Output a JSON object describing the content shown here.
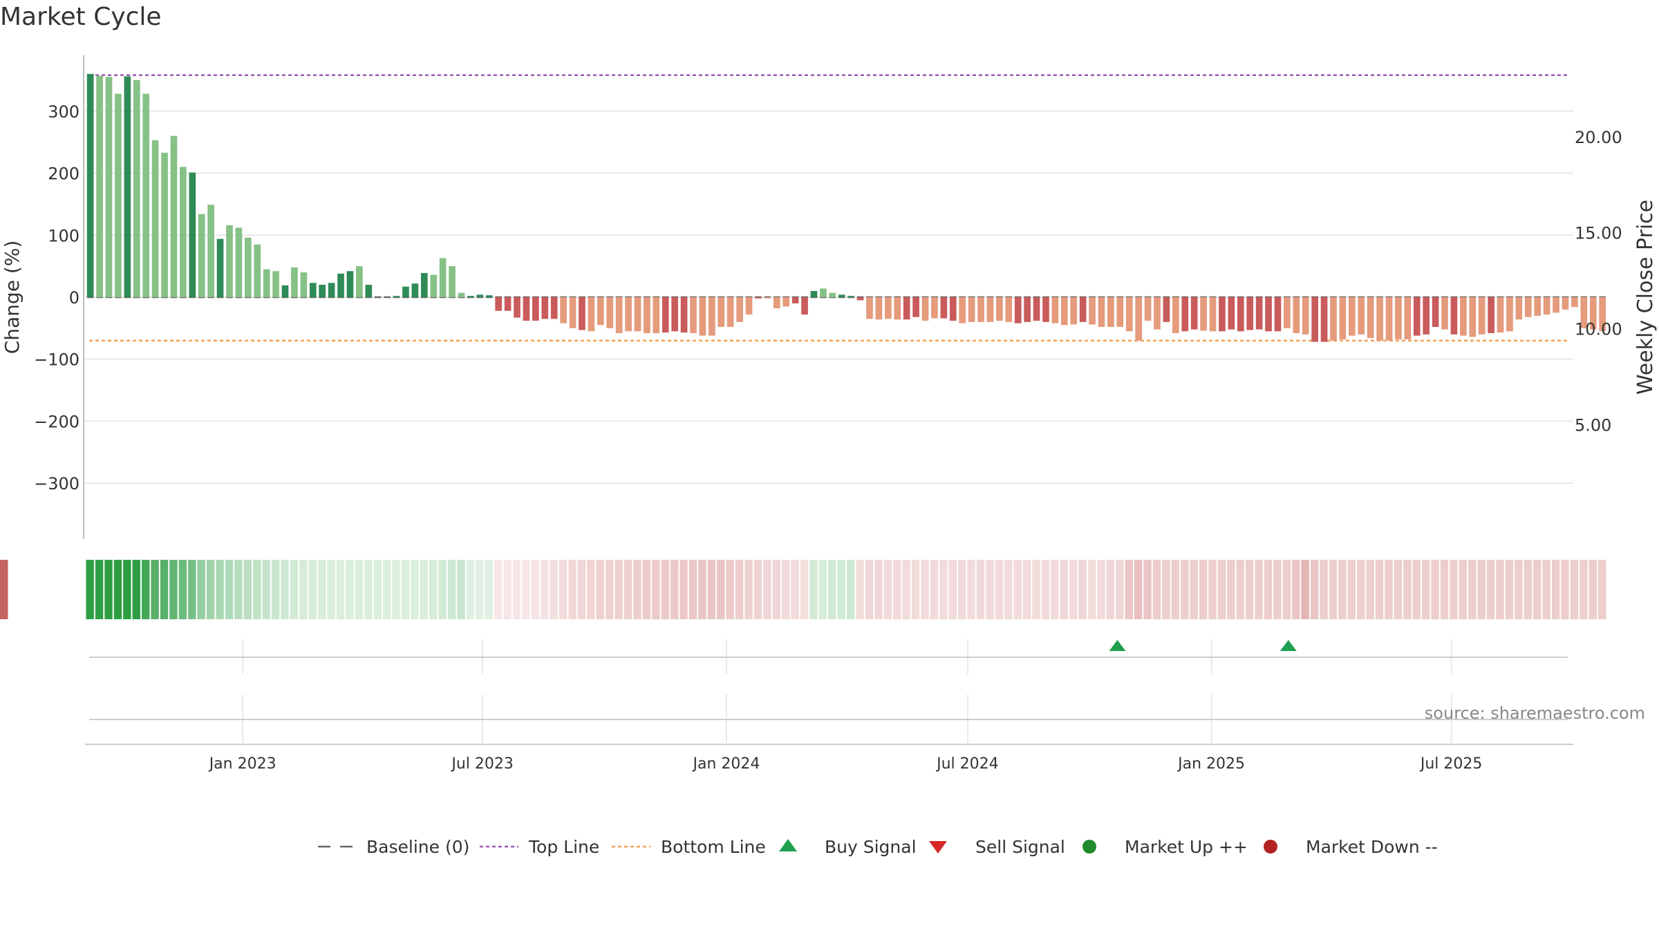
{
  "title": "Market Cycle",
  "source": "source: sharemaestro.com",
  "colors": {
    "green_dark": "#2e8b57",
    "green_light": "#86c186",
    "red_dark": "#c95b5b",
    "red_light": "#e59b7c",
    "top_line": "#9b59b6",
    "bottom_line": "#f0a050",
    "buy": "#1fa050",
    "sell": "#d62828",
    "market_up": "#1f8b2c",
    "market_down": "#b22222",
    "grid": "#e8e8e8",
    "axis": "#bbbbbb",
    "text": "#333333"
  },
  "legend": [
    {
      "key": "baseline",
      "label": "Baseline (0)"
    },
    {
      "key": "top",
      "label": "Top Line"
    },
    {
      "key": "bottom",
      "label": "Bottom Line"
    },
    {
      "key": "buy",
      "label": "Buy Signal"
    },
    {
      "key": "sell",
      "label": "Sell Signal"
    },
    {
      "key": "up",
      "label": "Market Up ++"
    },
    {
      "key": "down",
      "label": "Market Down --"
    }
  ],
  "chart_data": {
    "type": "bar",
    "ylabel": "Change (%)",
    "y2label": "Weekly Close Price",
    "ylim": [
      -390,
      390
    ],
    "yticks": [
      -300,
      -200,
      -100,
      0,
      100,
      200,
      300
    ],
    "ytick_labels": [
      "−300",
      "−200",
      "−100",
      "0",
      "100",
      "200",
      "300"
    ],
    "y2lim": [
      -0.96,
      24.24
    ],
    "y2ticks": [
      5,
      10,
      15,
      20
    ],
    "y2tick_labels": [
      "5.00",
      "10.00",
      "15.00",
      "20.00"
    ],
    "top_line": 358,
    "bottom_line": -70,
    "grid": true,
    "legend_position": "bottom",
    "x_start": "2022-09-04",
    "x_end": "2025-10-01",
    "xticks": [
      {
        "date": "2023-01-01",
        "label": "Jan 2023"
      },
      {
        "date": "2023-07-01",
        "label": "Jul 2023"
      },
      {
        "date": "2024-01-01",
        "label": "Jan 2024"
      },
      {
        "date": "2024-07-01",
        "label": "Jul 2024"
      },
      {
        "date": "2025-01-01",
        "label": "Jan 2025"
      },
      {
        "date": "2025-07-01",
        "label": "Jul 2025"
      }
    ],
    "first_bar_date": "2022-09-08",
    "bar_interval_days": 7,
    "bar_values": [
      360,
      357,
      355,
      328,
      356,
      350,
      328,
      253,
      233,
      260,
      210,
      201,
      134,
      149,
      94,
      116,
      112,
      96,
      85,
      45,
      42,
      19,
      48,
      40,
      23,
      20,
      23,
      38,
      42,
      50,
      20,
      0,
      0,
      2,
      17,
      22,
      39,
      36,
      63,
      50,
      7,
      2,
      4,
      3,
      -22,
      -22,
      -33,
      -38,
      -38,
      -35,
      -35,
      -42,
      -50,
      -53,
      -55,
      -45,
      -50,
      -58,
      -55,
      -55,
      -58,
      -58,
      -57,
      -55,
      -57,
      -58,
      -62,
      -62,
      -48,
      -48,
      -40,
      -28,
      -2,
      -2,
      -18,
      -15,
      -10,
      -28,
      10,
      14,
      7,
      4,
      2,
      -5,
      -35,
      -36,
      -35,
      -36,
      -36,
      -32,
      -38,
      -34,
      -34,
      -38,
      -42,
      -40,
      -40,
      -40,
      -38,
      -40,
      -42,
      -40,
      -38,
      -40,
      -42,
      -45,
      -44,
      -40,
      -44,
      -48,
      -48,
      -48,
      -55,
      -70,
      -38,
      -52,
      -40,
      -58,
      -55,
      -52,
      -54,
      -55,
      -55,
      -52,
      -55,
      -53,
      -52,
      -55,
      -55,
      -50,
      -58,
      -60,
      -72,
      -72,
      -70,
      -68,
      -62,
      -60,
      -66,
      -70,
      -70,
      -68,
      -68,
      -62,
      -60,
      -48,
      -52,
      -60,
      -62,
      -64,
      -60,
      -58,
      -57,
      -55,
      -36,
      -32,
      -30,
      -28,
      -25,
      -20,
      -16,
      -50,
      -52,
      -55
    ],
    "bar_shades": "dllldlllllldlldlllllldlldddddldllddddllllddddddddddlldlllllllldddllllllldllldddlldddllllddllddllllllddddllldlllllllldlddlldddddddlllddllllllllldddldllldlllllllllllllllddd",
    "strength": [
      1,
      1,
      1,
      1,
      1,
      1,
      0.9,
      0.8,
      0.8,
      0.75,
      0.7,
      0.65,
      0.5,
      0.45,
      0.4,
      0.38,
      0.35,
      0.33,
      0.3,
      0.28,
      0.26,
      0.24,
      0.22,
      0.2,
      0.2,
      0.19,
      0.18,
      0.18,
      0.18,
      0.18,
      0.18,
      0.17,
      0.17,
      0.17,
      0.17,
      0.17,
      0.18,
      0.2,
      0.22,
      0.24,
      0.26,
      0.15,
      0.15,
      0.15,
      0.15,
      0.15,
      0.15,
      0.15,
      0.16,
      0.18,
      0.2,
      0.22,
      0.24,
      0.25,
      0.26,
      0.28,
      0.28,
      0.28,
      0.29,
      0.3,
      0.32,
      0.32,
      0.32,
      0.33,
      0.33,
      0.34,
      0.35,
      0.35,
      0.35,
      0.32,
      0.3,
      0.28,
      0.27,
      0.25,
      0.25,
      0.22,
      0.22,
      0.2,
      0.22,
      0.2,
      0.22,
      0.22,
      0.24,
      0.22,
      0.24,
      0.24,
      0.22,
      0.22,
      0.22,
      0.22,
      0.22,
      0.22,
      0.22,
      0.22,
      0.22,
      0.22,
      0.23,
      0.22,
      0.22,
      0.22,
      0.22,
      0.22,
      0.22,
      0.22,
      0.22,
      0.24,
      0.22,
      0.25,
      0.22,
      0.22,
      0.25,
      0.25,
      0.35,
      0.38,
      0.35,
      0.3,
      0.3,
      0.3,
      0.3,
      0.3,
      0.3,
      0.3,
      0.3,
      0.3,
      0.3,
      0.3,
      0.3,
      0.3,
      0.3,
      0.3,
      0.35,
      0.45,
      0.35,
      0.3,
      0.3,
      0.3,
      0.3,
      0.3,
      0.3,
      0.3,
      0.3,
      0.3,
      0.3,
      0.3,
      0.3,
      0.3,
      0.3,
      0.3,
      0.3,
      0.3,
      0.3,
      0.3,
      0.3,
      0.3,
      0.3,
      0.3,
      0.3,
      0.3,
      0.3,
      0.3,
      0.3,
      0.3,
      0.3,
      0.3,
      0.3,
      0.3,
      0.28,
      0.25,
      0.22,
      0.22,
      0.2,
      0.2,
      0.18,
      0.2
    ],
    "buy_signals": [
      "2024-10-22",
      "2025-02-28"
    ],
    "sell_signals": []
  }
}
